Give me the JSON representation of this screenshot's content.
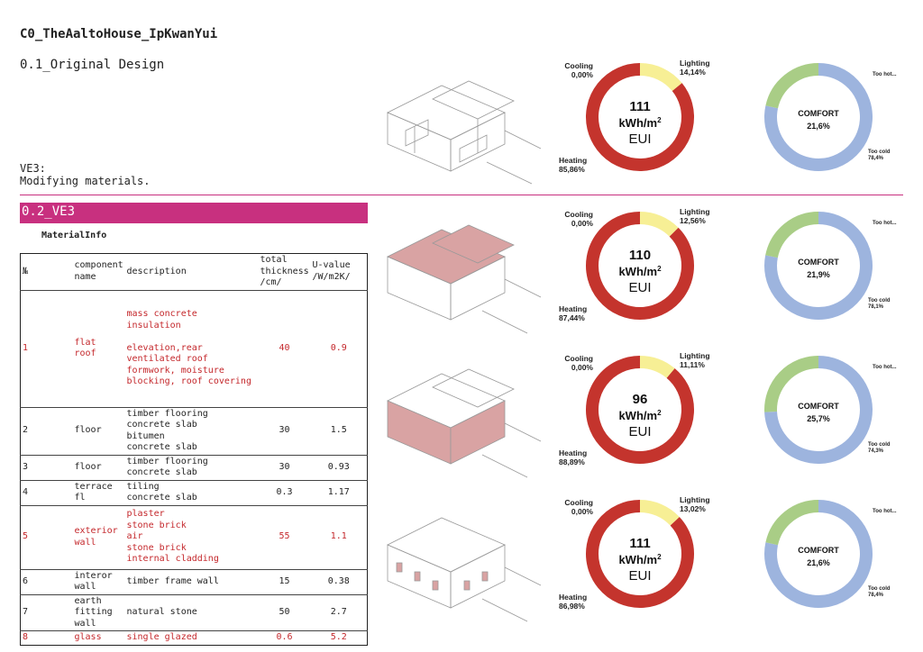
{
  "header": {
    "title": "C0_TheAaltoHouse_IpKwanYui",
    "subtitle": "0.1_Original Design",
    "note": "VE3:\nModifying materials."
  },
  "section": {
    "title": "0.2_VE3",
    "table_title": "MaterialInfo"
  },
  "table": {
    "headers": [
      "№",
      "component\nname",
      "description",
      "total\nthickness\n/cm/",
      "U-value\n/W/m2K/"
    ],
    "rows": [
      {
        "no": "1",
        "name": "flat roof",
        "desc": "mass concrete\ninsulation\n\nelevation,rear\nventilated roof\nformwork, moisture\nblocking, roof covering",
        "thickness": "40",
        "u": "0.9",
        "highlight": true
      },
      {
        "no": "2",
        "name": "floor",
        "desc": "timber flooring\nconcrete slab\nbitumen\nconcrete slab",
        "thickness": "30",
        "u": "1.5",
        "highlight": false
      },
      {
        "no": "3",
        "name": "floor",
        "desc": "timber flooring\nconcrete slab",
        "thickness": "30",
        "u": "0.93",
        "highlight": false
      },
      {
        "no": "4",
        "name": "terrace fl",
        "desc": "tiling\nconcrete slab",
        "thickness": "0.3",
        "u": "1.17",
        "highlight": false
      },
      {
        "no": "5",
        "name": "exterior\nwall",
        "desc": "plaster\nstone brick\nair\nstone brick\ninternal cladding",
        "thickness": "55",
        "u": "1.1",
        "highlight": true
      },
      {
        "no": "6",
        "name": "interor\nwall",
        "desc": "timber frame wall",
        "thickness": "15",
        "u": "0.38",
        "highlight": false
      },
      {
        "no": "7",
        "name": "earth\nfitting\nwall",
        "desc": "natural stone",
        "thickness": "50",
        "u": "2.7",
        "highlight": false
      },
      {
        "no": "8",
        "name": "glass",
        "desc": "single glazed",
        "thickness": "0.6",
        "u": "5.2",
        "highlight": true
      }
    ]
  },
  "energy": [
    {
      "eui": "111",
      "unit": "kWh/m",
      "sup": "2",
      "label": "EUI",
      "cooling": "Cooling\n0,00%",
      "lighting": "Lighting\n14,14%",
      "heating": "Heating\n85,86%",
      "lighting_pct": 14.14,
      "heating_pct": 85.86
    },
    {
      "eui": "110",
      "unit": "kWh/m",
      "sup": "2",
      "label": "EUI",
      "cooling": "Cooling\n0,00%",
      "lighting": "Lighting\n12,56%",
      "heating": "Heating\n87,44%",
      "lighting_pct": 12.56,
      "heating_pct": 87.44
    },
    {
      "eui": "96",
      "unit": "kWh/m",
      "sup": "2",
      "label": "EUI",
      "cooling": "Cooling\n0,00%",
      "lighting": "Lighting\n11,11%",
      "heating": "Heating\n88,89%",
      "lighting_pct": 11.11,
      "heating_pct": 88.89
    },
    {
      "eui": "111",
      "unit": "kWh/m",
      "sup": "2",
      "label": "EUI",
      "cooling": "Cooling\n0,00%",
      "lighting": "Lighting\n13,02%",
      "heating": "Heating\n86,98%",
      "lighting_pct": 13.02,
      "heating_pct": 86.98
    }
  ],
  "comfort": [
    {
      "title": "COMFORT",
      "value": "21,6%",
      "hot": "Too hot...",
      "cold": "Too cold\n78,4%",
      "comfort_pct": 21.6
    },
    {
      "title": "COMFORT",
      "value": "21,9%",
      "hot": "Too hot...",
      "cold": "Too cold\n78,1%",
      "comfort_pct": 21.9
    },
    {
      "title": "COMFORT",
      "value": "25,7%",
      "hot": "Too hot...",
      "cold": "Too cold\n74,3%",
      "comfort_pct": 25.7
    },
    {
      "title": "COMFORT",
      "value": "21,6%",
      "hot": "Too hot...",
      "cold": "Too cold\n78,4%",
      "comfort_pct": 21.6
    }
  ],
  "colors": {
    "accent": "#c8307f",
    "heating": "#c4342d",
    "lighting": "#f7ef95",
    "cold": "#9db4de",
    "comfort": "#a9cd86",
    "highlight_text": "#c4272b",
    "model_fill": "#d9a3a3"
  }
}
